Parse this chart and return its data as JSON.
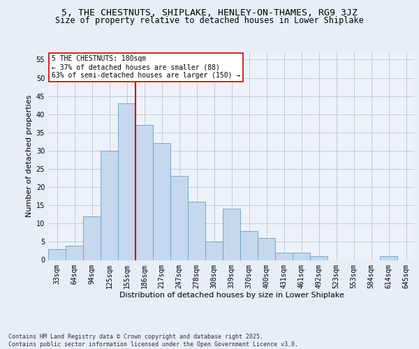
{
  "title_line1": "5, THE CHESTNUTS, SHIPLAKE, HENLEY-ON-THAMES, RG9 3JZ",
  "title_line2": "Size of property relative to detached houses in Lower Shiplake",
  "xlabel": "Distribution of detached houses by size in Lower Shiplake",
  "ylabel": "Number of detached properties",
  "categories": [
    "33sqm",
    "64sqm",
    "94sqm",
    "125sqm",
    "155sqm",
    "186sqm",
    "217sqm",
    "247sqm",
    "278sqm",
    "308sqm",
    "339sqm",
    "370sqm",
    "400sqm",
    "431sqm",
    "461sqm",
    "492sqm",
    "523sqm",
    "553sqm",
    "584sqm",
    "614sqm",
    "645sqm"
  ],
  "values": [
    3,
    4,
    12,
    30,
    43,
    37,
    32,
    23,
    16,
    5,
    14,
    8,
    6,
    2,
    2,
    1,
    0,
    0,
    0,
    1,
    0
  ],
  "bar_color": "#c5d8ed",
  "bar_edge_color": "#6a9ec5",
  "vline_index": 5,
  "vline_color": "#cc0000",
  "annotation_text": "5 THE CHESTNUTS: 180sqm\n← 37% of detached houses are smaller (88)\n63% of semi-detached houses are larger (150) →",
  "annotation_box_color": "#ffffff",
  "annotation_box_edge_color": "#cc0000",
  "yticks": [
    0,
    5,
    10,
    15,
    20,
    25,
    30,
    35,
    40,
    45,
    50,
    55
  ],
  "ylim": [
    0,
    57
  ],
  "background_color": "#e8eef5",
  "plot_background_color": "#edf2f8",
  "footer_text": "Contains HM Land Registry data © Crown copyright and database right 2025.\nContains public sector information licensed under the Open Government Licence v3.0.",
  "title_fontsize": 9.5,
  "subtitle_fontsize": 8.5,
  "axis_label_fontsize": 8,
  "tick_fontsize": 7,
  "annotation_fontsize": 7,
  "footer_fontsize": 6
}
